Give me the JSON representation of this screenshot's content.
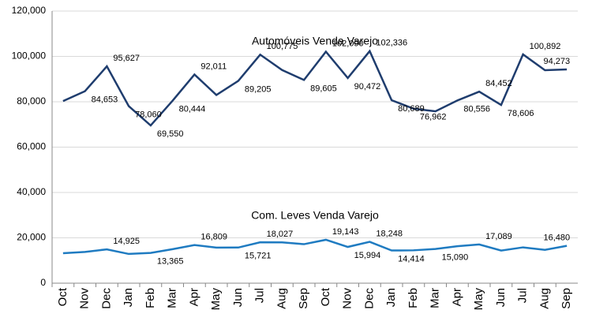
{
  "chart_data": {
    "type": "line",
    "categories": [
      "Oct",
      "Nov",
      "Dec",
      "Jan",
      "Feb",
      "Mar",
      "Apr",
      "May",
      "Jun",
      "Jul",
      "Aug",
      "Sep",
      "Oct",
      "Nov",
      "Dec",
      "Jan",
      "Feb",
      "Mar",
      "Apr",
      "May",
      "Jun",
      "Jul",
      "Aug",
      "Sep"
    ],
    "series": [
      {
        "name": "Automóveis Venda Varejo",
        "color": "#1f3d6e",
        "values": [
          80300,
          84653,
          95627,
          78060,
          69550,
          80444,
          92011,
          83000,
          89205,
          100775,
          94000,
          89605,
          102090,
          90472,
          102336,
          80689,
          76962,
          75800,
          80556,
          84452,
          78606,
          100892,
          93900,
          94273
        ],
        "value_labels": [
          null,
          "84,653",
          "95,627",
          "78,060",
          "69,550",
          "80,444",
          "92,011",
          null,
          "89,205",
          "100,775",
          null,
          "89,605",
          "102,090",
          "90,472",
          "102,336",
          "80,689",
          "76,962",
          null,
          "80,556",
          "84,452",
          "78,606",
          "100,892",
          null,
          "94,273"
        ]
      },
      {
        "name": "Com. Leves Venda Varejo",
        "color": "#1f7bc1",
        "values": [
          13200,
          13800,
          14925,
          12900,
          13365,
          15000,
          16809,
          15700,
          15721,
          18027,
          18000,
          17200,
          19143,
          15994,
          18248,
          14414,
          14500,
          15090,
          16300,
          17089,
          14400,
          15800,
          14700,
          16480
        ],
        "value_labels": [
          null,
          null,
          "14,925",
          null,
          "13,365",
          null,
          "16,809",
          null,
          "15,721",
          "18,027",
          null,
          null,
          "19,143",
          "15,994",
          "18,248",
          "14,414",
          null,
          "15,090",
          null,
          "17,089",
          null,
          null,
          null,
          "16,480"
        ]
      }
    ],
    "ylim": [
      0,
      120000
    ],
    "yticks": [
      {
        "value": 0,
        "label": "0"
      },
      {
        "value": 20000,
        "label": "20,000"
      },
      {
        "value": 40000,
        "label": "40,000"
      },
      {
        "value": 60000,
        "label": "60,000"
      },
      {
        "value": 80000,
        "label": "80,000"
      },
      {
        "value": 100000,
        "label": "100,000"
      },
      {
        "value": 120000,
        "label": "120,000"
      }
    ],
    "grid": true
  }
}
